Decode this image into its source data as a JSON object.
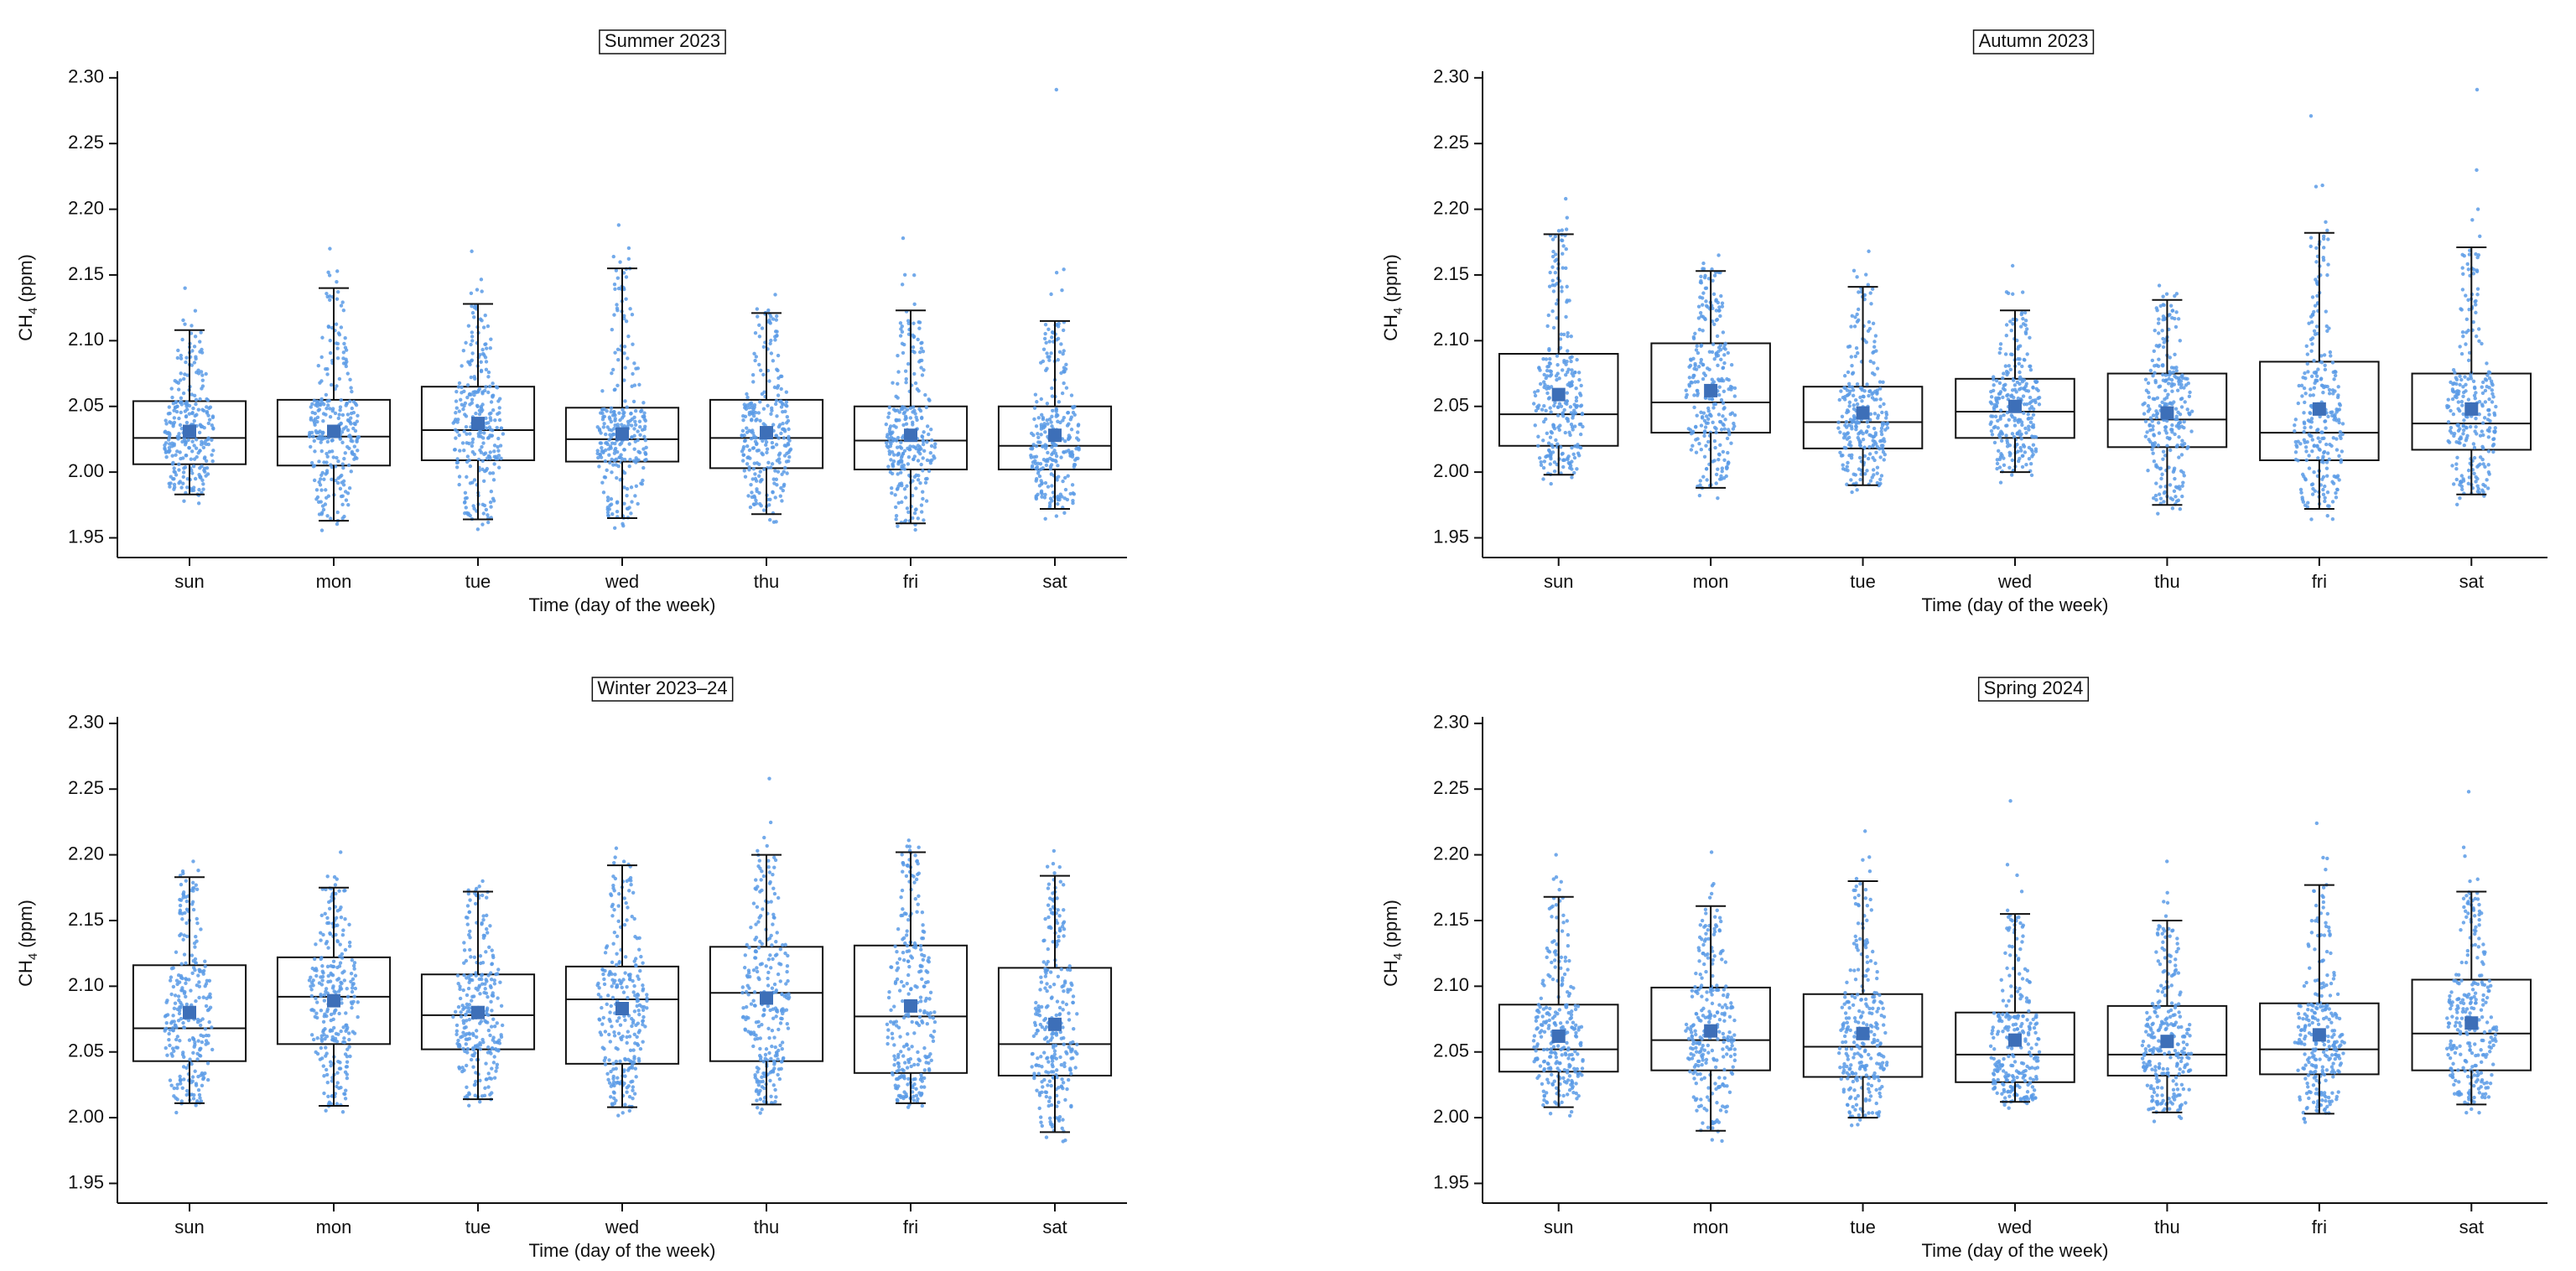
{
  "figure": {
    "colors": {
      "point": "#5b9be6",
      "mean": "#3d6fb8",
      "whisker": "#111111",
      "box": "#111111",
      "frame": "#111111"
    }
  },
  "chart_data": [
    {
      "type": "box",
      "title": "Summer 2023",
      "xlabel": "Time (day of the week)",
      "ylabel_main": "CH",
      "ylabel_sub": "4",
      "ylabel_unit": " (ppm)",
      "ylim": [
        1.935,
        2.305
      ],
      "yticks": [
        1.95,
        2.0,
        2.05,
        2.1,
        2.15,
        2.2,
        2.25,
        2.3
      ],
      "ytick_labels": [
        "1.95",
        "2.00",
        "2.05",
        "2.10",
        "2.15",
        "2.20",
        "2.25",
        "2.30"
      ],
      "categories": [
        "sun",
        "mon",
        "tue",
        "wed",
        "thu",
        "fri",
        "sat"
      ],
      "whisker_low": [
        1.983,
        1.963,
        1.964,
        1.965,
        1.968,
        1.961,
        1.972
      ],
      "q1": [
        2.006,
        2.005,
        2.009,
        2.008,
        2.003,
        2.002,
        2.002
      ],
      "median": [
        2.026,
        2.027,
        2.032,
        2.025,
        2.026,
        2.024,
        2.02
      ],
      "q3": [
        2.054,
        2.055,
        2.065,
        2.049,
        2.055,
        2.05,
        2.05
      ],
      "whisker_high": [
        2.108,
        2.14,
        2.128,
        2.155,
        2.121,
        2.123,
        2.115
      ],
      "mean": [
        2.031,
        2.031,
        2.037,
        2.029,
        2.03,
        2.028,
        2.028
      ],
      "max_point": [
        2.14,
        2.17,
        2.168,
        2.188,
        2.135,
        2.178,
        2.291
      ]
    },
    {
      "type": "box",
      "title": "Autumn 2023",
      "xlabel": "Time (day of the week)",
      "ylabel_main": "CH",
      "ylabel_sub": "4",
      "ylabel_unit": " (ppm)",
      "ylim": [
        1.935,
        2.305
      ],
      "yticks": [
        1.95,
        2.0,
        2.05,
        2.1,
        2.15,
        2.2,
        2.25,
        2.3
      ],
      "ytick_labels": [
        "1.95",
        "2.00",
        "2.05",
        "2.10",
        "2.15",
        "2.20",
        "2.25",
        "2.30"
      ],
      "categories": [
        "sun",
        "mon",
        "tue",
        "wed",
        "thu",
        "fri",
        "sat"
      ],
      "whisker_low": [
        1.998,
        1.988,
        1.99,
        2.0,
        1.975,
        1.972,
        1.983
      ],
      "q1": [
        2.02,
        2.03,
        2.018,
        2.026,
        2.019,
        2.009,
        2.017
      ],
      "median": [
        2.044,
        2.053,
        2.038,
        2.046,
        2.04,
        2.03,
        2.037
      ],
      "q3": [
        2.09,
        2.098,
        2.065,
        2.071,
        2.075,
        2.084,
        2.075
      ],
      "whisker_high": [
        2.181,
        2.153,
        2.141,
        2.123,
        2.131,
        2.182,
        2.171
      ],
      "mean": [
        2.059,
        2.062,
        2.045,
        2.05,
        2.045,
        2.048,
        2.048
      ],
      "max_point": [
        2.208,
        2.165,
        2.168,
        2.157,
        2.142,
        2.271,
        2.291
      ]
    },
    {
      "type": "box",
      "title": "Winter 2023–24",
      "xlabel": "Time (day of the week)",
      "ylabel_main": "CH",
      "ylabel_sub": "4",
      "ylabel_unit": " (ppm)",
      "ylim": [
        1.935,
        2.305
      ],
      "yticks": [
        1.95,
        2.0,
        2.05,
        2.1,
        2.15,
        2.2,
        2.25,
        2.3
      ],
      "ytick_labels": [
        "1.95",
        "2.00",
        "2.05",
        "2.10",
        "2.15",
        "2.20",
        "2.25",
        "2.30"
      ],
      "categories": [
        "sun",
        "mon",
        "tue",
        "wed",
        "thu",
        "fri",
        "sat"
      ],
      "whisker_low": [
        2.011,
        2.009,
        2.014,
        2.008,
        2.01,
        2.011,
        1.989
      ],
      "q1": [
        2.043,
        2.056,
        2.052,
        2.041,
        2.043,
        2.034,
        2.032
      ],
      "median": [
        2.068,
        2.092,
        2.078,
        2.09,
        2.095,
        2.077,
        2.056
      ],
      "q3": [
        2.116,
        2.122,
        2.109,
        2.115,
        2.13,
        2.131,
        2.114
      ],
      "whisker_high": [
        2.183,
        2.175,
        2.172,
        2.192,
        2.2,
        2.202,
        2.184
      ],
      "mean": [
        2.08,
        2.089,
        2.08,
        2.083,
        2.091,
        2.085,
        2.071
      ],
      "max_point": [
        2.195,
        2.202,
        2.18,
        2.205,
        2.258,
        2.211,
        2.203
      ]
    },
    {
      "type": "box",
      "title": "Spring 2024",
      "xlabel": "Time (day of the week)",
      "ylabel_main": "CH",
      "ylabel_sub": "4",
      "ylabel_unit": " (ppm)",
      "ylim": [
        1.935,
        2.305
      ],
      "yticks": [
        1.95,
        2.0,
        2.05,
        2.1,
        2.15,
        2.2,
        2.25,
        2.3
      ],
      "ytick_labels": [
        "1.95",
        "2.00",
        "2.05",
        "2.10",
        "2.15",
        "2.20",
        "2.25",
        "2.30"
      ],
      "categories": [
        "sun",
        "mon",
        "tue",
        "wed",
        "thu",
        "fri",
        "sat"
      ],
      "whisker_low": [
        2.008,
        1.99,
        2.0,
        2.012,
        2.004,
        2.003,
        2.01
      ],
      "q1": [
        2.035,
        2.036,
        2.031,
        2.027,
        2.032,
        2.033,
        2.036
      ],
      "median": [
        2.052,
        2.059,
        2.054,
        2.048,
        2.048,
        2.052,
        2.064
      ],
      "q3": [
        2.086,
        2.099,
        2.094,
        2.08,
        2.085,
        2.087,
        2.105
      ],
      "whisker_high": [
        2.168,
        2.161,
        2.18,
        2.155,
        2.15,
        2.177,
        2.172
      ],
      "mean": [
        2.062,
        2.066,
        2.064,
        2.059,
        2.058,
        2.063,
        2.072
      ],
      "max_point": [
        2.2,
        2.202,
        2.218,
        2.241,
        2.195,
        2.224,
        2.248
      ]
    }
  ]
}
